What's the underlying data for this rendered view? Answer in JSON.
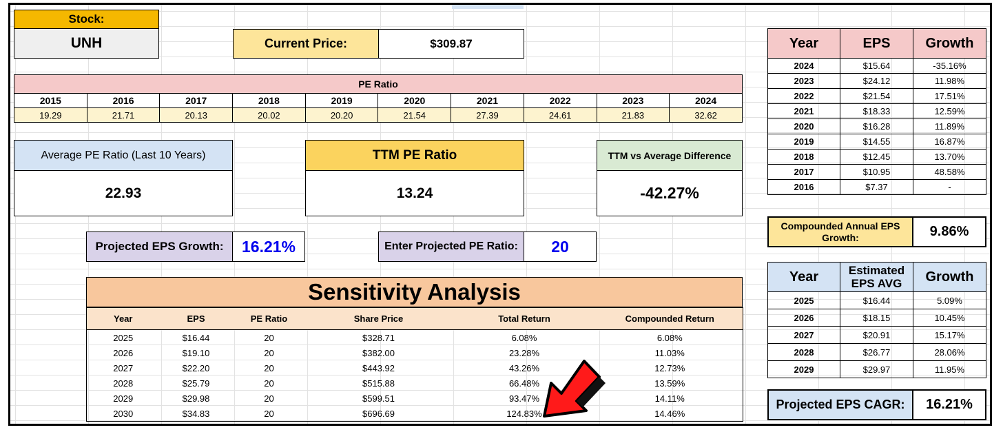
{
  "stock": {
    "label": "Stock:",
    "ticker": "UNH"
  },
  "current_price": {
    "label": "Current Price:",
    "value": "$309.87"
  },
  "pe_ratio": {
    "title": "PE Ratio",
    "years": [
      "2015",
      "2016",
      "2017",
      "2018",
      "2019",
      "2020",
      "2021",
      "2022",
      "2023",
      "2024"
    ],
    "values": [
      "19.29",
      "21.71",
      "20.13",
      "20.02",
      "20.20",
      "21.54",
      "27.39",
      "24.61",
      "21.83",
      "32.62"
    ]
  },
  "average_pe": {
    "label": "Average PE Ratio (Last 10 Years)",
    "value": "22.93"
  },
  "ttm_pe": {
    "label": "TTM PE Ratio",
    "value": "13.24"
  },
  "ttm_vs_avg": {
    "label": "TTM vs Average Difference",
    "value": "-42.27%"
  },
  "projected_eps_growth": {
    "label": "Projected EPS Growth:",
    "value": "16.21%"
  },
  "projected_pe": {
    "label": "Enter Projected PE Ratio:",
    "value": "20"
  },
  "sensitivity": {
    "title": "Sensitivity Analysis",
    "headers": [
      "Year",
      "EPS",
      "PE Ratio",
      "Share Price",
      "Total Return",
      "Compounded Return"
    ],
    "rows": [
      [
        "2025",
        "$16.44",
        "20",
        "$328.71",
        "6.08%",
        "6.08%"
      ],
      [
        "2026",
        "$19.10",
        "20",
        "$382.00",
        "23.28%",
        "11.03%"
      ],
      [
        "2027",
        "$22.20",
        "20",
        "$443.92",
        "43.26%",
        "12.73%"
      ],
      [
        "2028",
        "$25.79",
        "20",
        "$515.88",
        "66.48%",
        "13.59%"
      ],
      [
        "2029",
        "$29.98",
        "20",
        "$599.51",
        "93.47%",
        "14.11%"
      ],
      [
        "2030",
        "$34.83",
        "20",
        "$696.69",
        "124.83%",
        "14.46%"
      ]
    ]
  },
  "eps_history": {
    "headers": [
      "Year",
      "EPS",
      "Growth"
    ],
    "rows": [
      [
        "2024",
        "$15.64",
        "-35.16%"
      ],
      [
        "2023",
        "$24.12",
        "11.98%"
      ],
      [
        "2022",
        "$21.54",
        "17.51%"
      ],
      [
        "2021",
        "$18.33",
        "12.59%"
      ],
      [
        "2020",
        "$16.28",
        "11.89%"
      ],
      [
        "2019",
        "$14.55",
        "16.87%"
      ],
      [
        "2018",
        "$12.45",
        "13.70%"
      ],
      [
        "2017",
        "$10.95",
        "48.58%"
      ],
      [
        "2016",
        "$7.37",
        "-"
      ]
    ]
  },
  "compounded_eps_growth": {
    "label": "Compounded Annual EPS Growth:",
    "value": "9.86%"
  },
  "estimated_eps": {
    "headers": [
      "Year",
      "Estimated EPS AVG",
      "Growth"
    ],
    "rows": [
      [
        "2025",
        "$16.44",
        "5.09%"
      ],
      [
        "2026",
        "$18.15",
        "10.45%"
      ],
      [
        "2027",
        "$20.91",
        "15.17%"
      ],
      [
        "2028",
        "$26.77",
        "28.06%"
      ],
      [
        "2029",
        "$29.97",
        "11.95%"
      ]
    ]
  },
  "projected_eps_cagr": {
    "label": "Projected EPS CAGR:",
    "value": "16.21%"
  },
  "colors": {
    "stock_header": "#f5b800",
    "current_price_label": "#fde59a",
    "pe_header": "#f5c9c9",
    "pe_values": "#fdf3cf",
    "avg_pe_header": "#d4e3f4",
    "ttm_header": "#fbd35e",
    "ttm_diff_header": "#d9ead3",
    "projected_label": "#d9d2e9",
    "input_value": "#0000ee",
    "sensitivity_title": "#f8c79d",
    "sensitivity_headers": "#fbe3cb",
    "arrow": "#ff0000"
  },
  "icons": {
    "annotation": "red-arrow-icon"
  }
}
